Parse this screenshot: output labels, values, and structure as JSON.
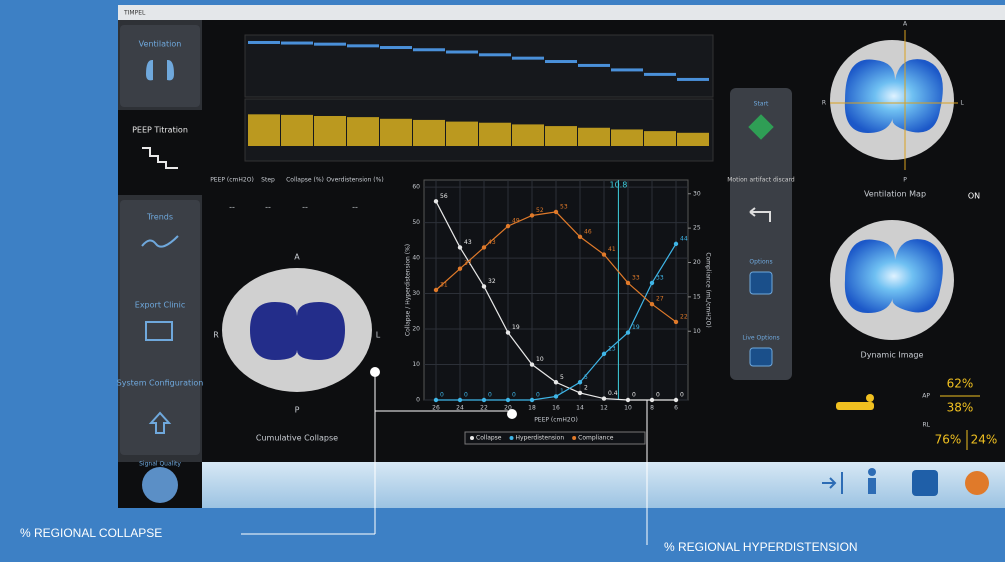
{
  "top_bar": {
    "title": "TIMPEL"
  },
  "sidebar": {
    "items": [
      "Ventilation",
      "PEEP Titration",
      "Trends",
      "Export Clinic",
      "System Configuration",
      "Signal Quality"
    ]
  },
  "trend": {
    "impedance": {
      "ylim": [
        0,
        10
      ],
      "values": [
        9.2,
        9.1,
        8.9,
        8.6,
        8.3,
        7.9,
        7.5,
        7.0,
        6.4,
        5.8,
        5.1,
        4.3,
        3.5,
        2.6
      ]
    },
    "pressure": {
      "ylim": [
        0,
        10
      ],
      "values": [
        7.8,
        7.7,
        7.5,
        7.3,
        7.0,
        6.8,
        6.5,
        6.3,
        6.0,
        5.7,
        5.4,
        5.1,
        4.8,
        4.5
      ]
    }
  },
  "table": {
    "headers": [
      "PEEP (cmH2O)",
      "Step",
      "Collapse (%)",
      "Overdistension (%)"
    ],
    "values": [
      "--",
      "--",
      "--",
      "--"
    ]
  },
  "collapse_map": {
    "orientation": [
      "A",
      "R",
      "L",
      "P"
    ],
    "label": "Cumulative Collapse"
  },
  "chart_data": {
    "type": "line",
    "x_label": "PEEP (cmH2O)",
    "y_label": "Collapse / Hyperdistension (%)",
    "y2_label": "Compliance (mL/cmH2O)",
    "x": [
      26,
      24,
      22,
      20,
      18,
      16,
      14,
      12,
      10,
      8,
      6
    ],
    "xlim": [
      27,
      5
    ],
    "xticks": [
      26,
      24,
      22,
      20,
      18,
      16,
      14,
      12,
      10,
      8,
      6
    ],
    "ylim": [
      0,
      62
    ],
    "yticks": [
      0,
      10,
      20,
      30,
      40,
      50,
      60
    ],
    "y2lim": [
      0,
      32
    ],
    "y2ticks": [
      10,
      15,
      20,
      25,
      30
    ],
    "grid": true,
    "highlight": 10.8,
    "series": [
      {
        "name": "Collapse",
        "color": "#e8e8e8",
        "values": [
          56,
          43,
          32,
          19,
          10,
          5,
          2,
          0.4,
          0,
          0,
          0
        ]
      },
      {
        "name": "Hyperdistension",
        "color": "#3fb6e8",
        "values": [
          0,
          0,
          0,
          0,
          0,
          1,
          5,
          13,
          19,
          33,
          44
        ]
      },
      {
        "name": "Compliance",
        "color": "#e07a2a",
        "values": [
          31,
          37,
          43,
          49,
          52,
          53,
          46,
          41,
          33,
          27,
          22
        ]
      }
    ]
  },
  "actions": [
    "Start",
    "Motion artifact discard",
    "Options",
    "Live Options"
  ],
  "ventilation_map": {
    "orientation": [
      "A",
      "R",
      "L",
      "P"
    ],
    "label": "Ventilation Map",
    "status": "ON"
  },
  "dynamic_image": {
    "label": "Dynamic Image"
  },
  "distribution": {
    "ap_label": "AP",
    "ap": [
      "62%",
      "38%"
    ],
    "rl_label": "RL",
    "rl": [
      "76%",
      "24%"
    ]
  },
  "callouts": [
    "% REGIONAL COLLAPSE",
    "% REGIONAL HYPERDISTENSION"
  ]
}
